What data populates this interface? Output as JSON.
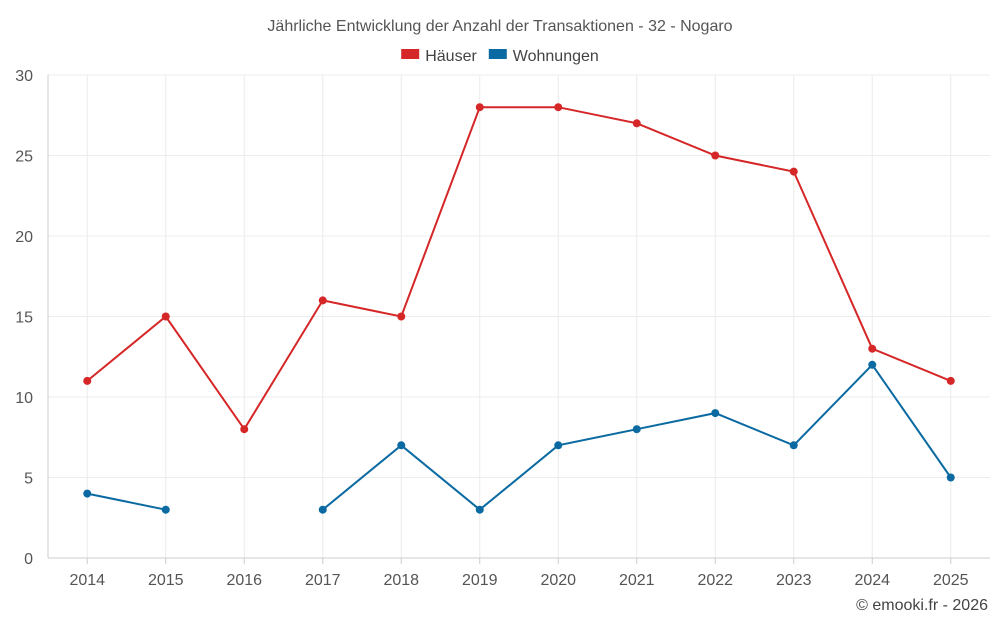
{
  "chart_data": {
    "type": "line",
    "title": "Jährliche Entwicklung der Anzahl der Transaktionen - 32 - Nogaro",
    "categories": [
      "2014",
      "2015",
      "2016",
      "2017",
      "2018",
      "2019",
      "2020",
      "2021",
      "2022",
      "2023",
      "2024",
      "2025"
    ],
    "series": [
      {
        "name": "Häuser",
        "color": "#d62728",
        "values": [
          11,
          15,
          8,
          16,
          15,
          28,
          28,
          27,
          25,
          24,
          13,
          11
        ]
      },
      {
        "name": "Wohnungen",
        "color": "#0a6aa1",
        "values": [
          4,
          3,
          null,
          3,
          7,
          3,
          7,
          8,
          9,
          7,
          12,
          5
        ]
      }
    ],
    "ylim": [
      0,
      30
    ],
    "yticks": [
      0,
      5,
      10,
      15,
      20,
      25,
      30
    ],
    "xlabel": "",
    "ylabel": "",
    "grid": true,
    "legend": "top-center"
  },
  "credit": "© emooki.fr - 2026"
}
